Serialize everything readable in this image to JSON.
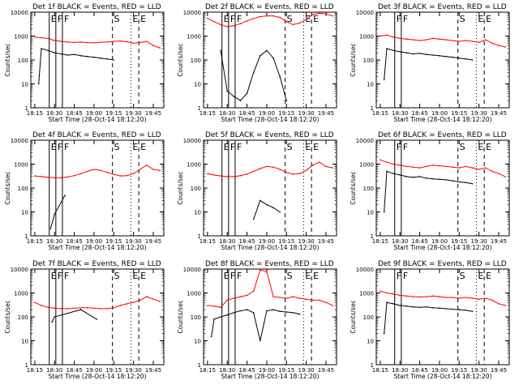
{
  "figure": {
    "series_legend": "BLACK = Events, RED = LLD"
  },
  "chart_data": [
    {
      "type": "line",
      "title": "Det 1f BLACK = Events, RED = LLD",
      "xlabel": "Start Time (28-Oct-14 18:12:20)",
      "ylabel": "Counts/sec",
      "x_ticks": [
        "18:15",
        "18:30",
        "18:45",
        "19:00",
        "19:15",
        "19:30",
        "19:45"
      ],
      "y_ticks": [
        "1",
        "10",
        "100",
        "1000",
        "10000"
      ],
      "y_scale": "log",
      "ylim": [
        1,
        10000
      ],
      "markers": {
        "solid": [
          "E",
          "F",
          "F"
        ],
        "dashed": [
          "S",
          "E"
        ],
        "dotted": [
          "E"
        ]
      },
      "series": [
        {
          "name": "LLD",
          "color": "#ff0000",
          "x": [
            "18:15",
            "18:20",
            "18:25",
            "18:30",
            "18:35",
            "18:40",
            "18:45",
            "18:50",
            "18:55",
            "19:00",
            "19:05",
            "19:10",
            "19:15",
            "19:20",
            "19:25",
            "19:30",
            "19:35",
            "19:40",
            "19:45",
            "19:50"
          ],
          "values": [
            900,
            850,
            800,
            650,
            600,
            560,
            540,
            560,
            530,
            520,
            550,
            560,
            600,
            620,
            580,
            500,
            540,
            600,
            400,
            320
          ]
        },
        {
          "name": "Events",
          "color": "#000000",
          "x": [
            "18:18",
            "18:20",
            "18:25",
            "18:30",
            "18:35",
            "18:40",
            "18:45",
            "18:50",
            "18:55",
            "19:00",
            "19:05",
            "19:10",
            "19:15"
          ],
          "values": [
            10,
            300,
            250,
            200,
            180,
            160,
            170,
            150,
            140,
            130,
            120,
            110,
            100
          ]
        }
      ]
    },
    {
      "type": "line",
      "title": "Det 2f BLACK = Events, RED = LLD",
      "xlabel": "Start Time (28-Oct-14 18:12:20)",
      "ylabel": "Counts/sec",
      "x_ticks": [
        "18:15",
        "18:30",
        "18:45",
        "19:00",
        "19:15",
        "19:30",
        "19:45"
      ],
      "y_ticks": [
        "1",
        "10",
        "100",
        "1000",
        "10000"
      ],
      "y_scale": "log",
      "ylim": [
        1,
        10000
      ],
      "markers": {
        "solid": [
          "E",
          "F",
          "F"
        ],
        "dashed": [
          "S",
          "E"
        ],
        "dotted": [
          "E"
        ]
      },
      "series": [
        {
          "name": "LLD",
          "color": "#ff0000",
          "x": [
            "18:15",
            "18:20",
            "18:25",
            "18:30",
            "18:35",
            "18:40",
            "18:45",
            "18:50",
            "18:55",
            "19:00",
            "19:05",
            "19:10",
            "19:15",
            "19:20",
            "19:25",
            "19:30",
            "19:35",
            "19:40",
            "19:45",
            "19:50"
          ],
          "values": [
            5500,
            4000,
            3000,
            2500,
            2700,
            3300,
            4300,
            5500,
            6500,
            7000,
            7000,
            6000,
            4000,
            3000,
            3500,
            5000,
            8000,
            9000,
            8500,
            7000
          ]
        },
        {
          "name": "Events",
          "color": "#000000",
          "x": [
            "18:25",
            "18:30",
            "18:35",
            "18:40",
            "18:45",
            "18:50",
            "18:55",
            "19:00",
            "19:05",
            "19:10",
            "19:15"
          ],
          "values": [
            250,
            5,
            3,
            2,
            4,
            30,
            150,
            250,
            120,
            20,
            2
          ]
        }
      ]
    },
    {
      "type": "line",
      "title": "Det 3f BLACK = Events, RED = LLD",
      "xlabel": "Start Time (28-Oct-14 18:12:20)",
      "ylabel": "Counts/sec",
      "x_ticks": [
        "18:15",
        "18:30",
        "18:45",
        "19:00",
        "19:15",
        "19:30",
        "19:45"
      ],
      "y_ticks": [
        "1",
        "10",
        "100",
        "1000",
        "10000"
      ],
      "y_scale": "log",
      "ylim": [
        1,
        10000
      ],
      "markers": {
        "solid": [
          "F",
          "F"
        ],
        "dashed": [
          "S",
          "E"
        ],
        "dotted": [
          "E"
        ]
      },
      "series": [
        {
          "name": "LLD",
          "color": "#ff0000",
          "x": [
            "18:15",
            "18:20",
            "18:25",
            "18:30",
            "18:35",
            "18:40",
            "18:45",
            "18:50",
            "18:55",
            "19:00",
            "19:05",
            "19:10",
            "19:15",
            "19:20",
            "19:25",
            "19:30",
            "19:35",
            "19:40",
            "19:45",
            "19:50"
          ],
          "values": [
            1000,
            1100,
            900,
            800,
            750,
            700,
            650,
            700,
            800,
            750,
            700,
            650,
            600,
            650,
            600,
            550,
            700,
            500,
            400,
            350
          ]
        },
        {
          "name": "Events",
          "color": "#000000",
          "x": [
            "18:18",
            "18:20",
            "18:25",
            "18:30",
            "18:35",
            "18:40",
            "18:45",
            "18:50",
            "18:55",
            "19:00",
            "19:05",
            "19:10",
            "19:15",
            "19:20",
            "19:25"
          ],
          "values": [
            15,
            300,
            250,
            220,
            200,
            180,
            190,
            170,
            160,
            150,
            140,
            130,
            120,
            110,
            100
          ]
        }
      ]
    },
    {
      "type": "line",
      "title": "Det 4f BLACK = Events, RED = LLD",
      "xlabel": "Start Time (28-Oct-14 18:12:20)",
      "ylabel": "Counts/sec",
      "x_ticks": [
        "18:15",
        "18:30",
        "18:45",
        "19:00",
        "19:15",
        "19:30",
        "19:45"
      ],
      "y_ticks": [
        "1",
        "10",
        "100",
        "1000",
        "10000"
      ],
      "y_scale": "log",
      "ylim": [
        1,
        10000
      ],
      "markers": {
        "solid": [
          "E",
          "F",
          "F"
        ],
        "dashed": [
          "S",
          "E"
        ],
        "dotted": [
          "E"
        ]
      },
      "series": [
        {
          "name": "LLD",
          "color": "#ff0000",
          "x": [
            "18:15",
            "18:20",
            "18:25",
            "18:30",
            "18:35",
            "18:40",
            "18:45",
            "18:50",
            "18:55",
            "19:00",
            "19:05",
            "19:10",
            "19:15",
            "19:20",
            "19:25",
            "19:30",
            "19:35",
            "19:40",
            "19:45",
            "19:50"
          ],
          "values": [
            320,
            300,
            280,
            270,
            270,
            290,
            330,
            400,
            500,
            600,
            550,
            450,
            370,
            320,
            330,
            400,
            600,
            900,
            600,
            550
          ]
        },
        {
          "name": "Events",
          "color": "#000000",
          "x": [
            "18:27",
            "18:30",
            "18:38"
          ],
          "values": [
            2,
            8,
            50
          ]
        }
      ]
    },
    {
      "type": "line",
      "title": "Det 5f BLACK = Events, RED = LLD",
      "xlabel": "Start Time (28-Oct-14 18:12:20)",
      "ylabel": "Counts/sec",
      "x_ticks": [
        "18:15",
        "18:30",
        "18:45",
        "19:00",
        "19:15",
        "19:30",
        "19:45"
      ],
      "y_ticks": [
        "1",
        "10",
        "100",
        "1000",
        "10000"
      ],
      "y_scale": "log",
      "ylim": [
        1,
        10000
      ],
      "markers": {
        "solid": [
          "E",
          "F",
          "F"
        ],
        "dashed": [
          "S",
          "E"
        ],
        "dotted": [
          "E"
        ]
      },
      "series": [
        {
          "name": "LLD",
          "color": "#ff0000",
          "x": [
            "18:15",
            "18:20",
            "18:25",
            "18:30",
            "18:35",
            "18:40",
            "18:45",
            "18:50",
            "18:55",
            "19:00",
            "19:05",
            "19:10",
            "19:15",
            "19:20",
            "19:25",
            "19:30",
            "19:35",
            "19:40",
            "19:45",
            "19:50"
          ],
          "values": [
            400,
            350,
            320,
            300,
            300,
            330,
            380,
            500,
            650,
            800,
            750,
            600,
            450,
            380,
            400,
            550,
            900,
            1200,
            800,
            700
          ]
        },
        {
          "name": "Events",
          "color": "#000000",
          "x": [
            "18:50",
            "18:55",
            "19:00",
            "19:05",
            "19:10"
          ],
          "values": [
            5,
            30,
            20,
            15,
            10
          ]
        }
      ]
    },
    {
      "type": "line",
      "title": "Det 6f BLACK = Events, RED = LLD",
      "xlabel": "Start Time (28-Oct-14 18:12:20)",
      "ylabel": "Counts/sec",
      "x_ticks": [
        "18:15",
        "18:30",
        "18:45",
        "19:00",
        "19:15",
        "19:30",
        "19:45"
      ],
      "y_ticks": [
        "1",
        "10",
        "100",
        "1000",
        "10000"
      ],
      "y_scale": "log",
      "ylim": [
        1,
        10000
      ],
      "markers": {
        "solid": [
          "F",
          "F"
        ],
        "dashed": [
          "S",
          "E"
        ],
        "dotted": [
          "E"
        ]
      },
      "series": [
        {
          "name": "LLD",
          "color": "#ff0000",
          "x": [
            "18:15",
            "18:20",
            "18:25",
            "18:30",
            "18:35",
            "18:40",
            "18:45",
            "18:50",
            "18:55",
            "19:00",
            "19:05",
            "19:10",
            "19:15",
            "19:20",
            "19:25",
            "19:30",
            "19:35",
            "19:40",
            "19:45",
            "19:50"
          ],
          "values": [
            1500,
            1200,
            1000,
            900,
            800,
            750,
            700,
            800,
            900,
            850,
            800,
            750,
            700,
            800,
            700,
            600,
            700,
            500,
            400,
            300
          ]
        },
        {
          "name": "Events",
          "color": "#000000",
          "x": [
            "18:18",
            "18:20",
            "18:25",
            "18:30",
            "18:35",
            "18:40",
            "18:45",
            "18:50",
            "18:55",
            "19:00",
            "19:05",
            "19:10",
            "19:15",
            "19:20",
            "19:25"
          ],
          "values": [
            10,
            500,
            400,
            350,
            300,
            280,
            300,
            260,
            240,
            230,
            220,
            200,
            180,
            170,
            150
          ]
        }
      ]
    },
    {
      "type": "line",
      "title": "Det 7f BLACK = Events, RED = LLD",
      "xlabel": "Start Time (28-Oct-14 18:12:20)",
      "ylabel": "Counts/sec",
      "x_ticks": [
        "18:15",
        "18:30",
        "18:45",
        "19:00",
        "19:15",
        "19:30",
        "19:45"
      ],
      "y_ticks": [
        "1",
        "10",
        "100",
        "1000",
        "10000"
      ],
      "y_scale": "log",
      "ylim": [
        1,
        10000
      ],
      "markers": {
        "solid": [
          "E",
          "F",
          "F"
        ],
        "dashed": [
          "S",
          "E"
        ],
        "dotted": [
          "E"
        ]
      },
      "series": [
        {
          "name": "LLD",
          "color": "#ff0000",
          "x": [
            "18:15",
            "18:20",
            "18:25",
            "18:30",
            "18:35",
            "18:40",
            "18:45",
            "18:50",
            "18:55",
            "19:00",
            "19:05",
            "19:10",
            "19:15",
            "19:20",
            "19:25",
            "19:30",
            "19:35",
            "19:40",
            "19:45",
            "19:50"
          ],
          "values": [
            400,
            300,
            250,
            230,
            220,
            220,
            230,
            240,
            240,
            230,
            220,
            220,
            240,
            300,
            350,
            400,
            500,
            700,
            550,
            450
          ]
        },
        {
          "name": "Events",
          "color": "#000000",
          "x": [
            "18:28",
            "18:30",
            "18:50",
            "19:02"
          ],
          "values": [
            60,
            100,
            200,
            80
          ]
        }
      ]
    },
    {
      "type": "line",
      "title": "Det 8f BLACK = Events, RED = LLD",
      "xlabel": "Start Time (28-Oct-14 18:12:20)",
      "ylabel": "Counts/sec",
      "x_ticks": [
        "18:15",
        "18:30",
        "18:45",
        "19:00",
        "19:15",
        "19:30",
        "19:45"
      ],
      "y_ticks": [
        "1",
        "10",
        "100",
        "1000",
        "10000"
      ],
      "y_scale": "log",
      "ylim": [
        1,
        10000
      ],
      "markers": {
        "solid": [
          "E",
          "F",
          "F"
        ],
        "dashed": [
          "S",
          "E"
        ],
        "dotted": [
          "E"
        ]
      },
      "series": [
        {
          "name": "LLD",
          "color": "#ff0000",
          "x": [
            "18:15",
            "18:20",
            "18:25",
            "18:30",
            "18:35",
            "18:40",
            "18:45",
            "18:50",
            "18:55",
            "19:00",
            "19:05",
            "19:10",
            "19:15",
            "19:20",
            "19:25",
            "19:30",
            "19:35",
            "19:40",
            "19:45",
            "19:50"
          ],
          "values": [
            300,
            280,
            250,
            500,
            600,
            700,
            800,
            1200,
            9000,
            8000,
            700,
            650,
            600,
            700,
            600,
            550,
            500,
            500,
            400,
            300
          ]
        },
        {
          "name": "Events",
          "color": "#000000",
          "x": [
            "18:18",
            "18:20",
            "18:25",
            "18:30",
            "18:35",
            "18:40",
            "18:45",
            "18:50",
            "18:55",
            "19:00",
            "19:05",
            "19:10",
            "19:15",
            "19:20",
            "19:25"
          ],
          "values": [
            15,
            80,
            100,
            120,
            150,
            180,
            200,
            150,
            10,
            180,
            200,
            170,
            160,
            150,
            130
          ]
        }
      ]
    },
    {
      "type": "line",
      "title": "Det 9f BLACK = Events, RED = LLD",
      "xlabel": "Start Time (28-Oct-14 18:12:20)",
      "ylabel": "Counts/sec",
      "x_ticks": [
        "18:15",
        "18:30",
        "18:45",
        "19:00",
        "19:15",
        "19:30",
        "19:45"
      ],
      "y_ticks": [
        "1",
        "10",
        "100",
        "1000",
        "10000"
      ],
      "y_scale": "log",
      "ylim": [
        1,
        10000
      ],
      "markers": {
        "solid": [
          "F",
          "F"
        ],
        "dashed": [
          "S",
          "E"
        ],
        "dotted": [
          "E"
        ]
      },
      "series": [
        {
          "name": "LLD",
          "color": "#ff0000",
          "x": [
            "18:15",
            "18:20",
            "18:25",
            "18:30",
            "18:35",
            "18:40",
            "18:45",
            "18:50",
            "18:55",
            "19:00",
            "19:05",
            "19:10",
            "19:15",
            "19:20",
            "19:25",
            "19:30",
            "19:35",
            "19:40",
            "19:45",
            "19:50"
          ],
          "values": [
            1200,
            1000,
            900,
            800,
            750,
            700,
            680,
            700,
            750,
            700,
            650,
            650,
            600,
            650,
            600,
            550,
            600,
            500,
            350,
            300
          ]
        },
        {
          "name": "Events",
          "color": "#000000",
          "x": [
            "18:18",
            "18:20",
            "18:25",
            "18:30",
            "18:35",
            "18:40",
            "18:45",
            "18:50",
            "18:55",
            "19:00",
            "19:05",
            "19:10",
            "19:15",
            "19:20",
            "19:25"
          ],
          "values": [
            20,
            400,
            350,
            300,
            280,
            260,
            250,
            260,
            240,
            230,
            220,
            210,
            200,
            190,
            170
          ]
        }
      ]
    }
  ]
}
